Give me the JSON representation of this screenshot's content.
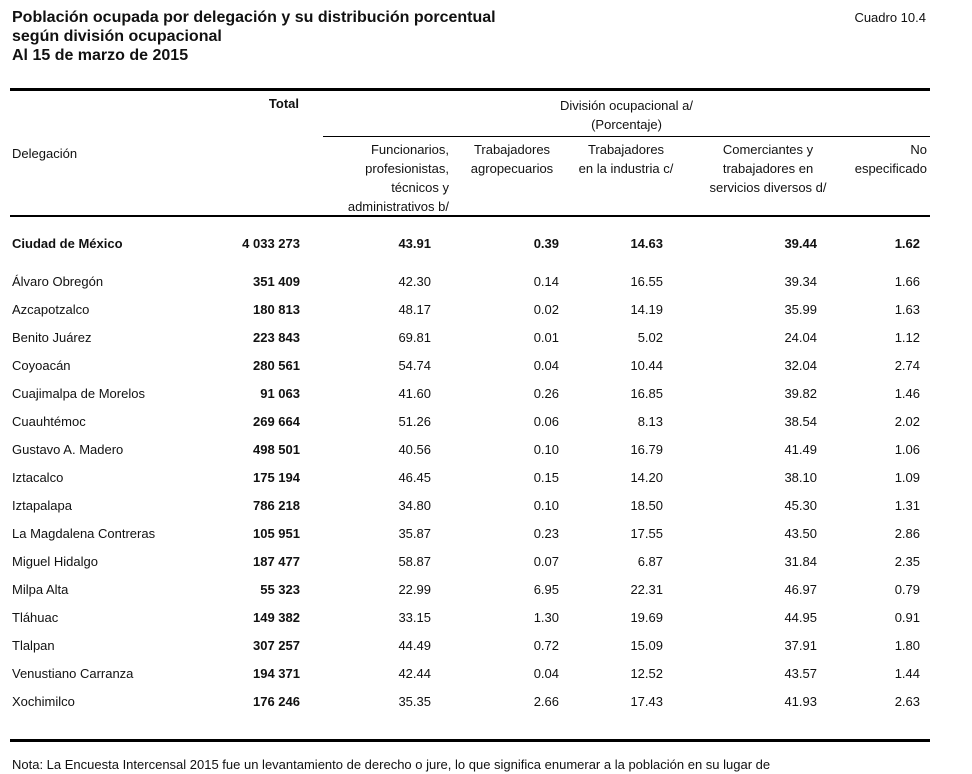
{
  "title": {
    "line1": "Población ocupada por delegación y su distribución porcentual",
    "line2": "según división ocupacional",
    "line3": "Al 15 de marzo de 2015"
  },
  "cuadro": "Cuadro 10.4",
  "header": {
    "delegacion": "Delegación",
    "total": "Total",
    "division_line1": "División ocupacional a/",
    "division_line2": "(Porcentaje)",
    "col_funcionarios": [
      "Funcionarios,",
      "profesionistas,",
      "técnicos y",
      "administrativos b/"
    ],
    "col_agropecuarios": [
      "Trabajadores",
      "agropecuarios"
    ],
    "col_industria": [
      "Trabajadores",
      "en la industria c/"
    ],
    "col_comerciantes": [
      "Comerciantes y",
      "trabajadores en",
      "servicios diversos d/"
    ],
    "col_no_especificado": [
      "No",
      "especificado"
    ]
  },
  "total_row": {
    "name": "Ciudad de México",
    "total": "4 033 273",
    "funcionarios": "43.91",
    "agropecuarios": "0.39",
    "industria": "14.63",
    "comerciantes": "39.44",
    "no_especificado": "1.62"
  },
  "rows": [
    {
      "name": "Álvaro Obregón",
      "total": "351 409",
      "funcionarios": "42.30",
      "agropecuarios": "0.14",
      "industria": "16.55",
      "comerciantes": "39.34",
      "no_especificado": "1.66"
    },
    {
      "name": "Azcapotzalco",
      "total": "180 813",
      "funcionarios": "48.17",
      "agropecuarios": "0.02",
      "industria": "14.19",
      "comerciantes": "35.99",
      "no_especificado": "1.63"
    },
    {
      "name": "Benito Juárez",
      "total": "223 843",
      "funcionarios": "69.81",
      "agropecuarios": "0.01",
      "industria": "5.02",
      "comerciantes": "24.04",
      "no_especificado": "1.12"
    },
    {
      "name": "Coyoacán",
      "total": "280 561",
      "funcionarios": "54.74",
      "agropecuarios": "0.04",
      "industria": "10.44",
      "comerciantes": "32.04",
      "no_especificado": "2.74"
    },
    {
      "name": "Cuajimalpa de Morelos",
      "total": "91 063",
      "funcionarios": "41.60",
      "agropecuarios": "0.26",
      "industria": "16.85",
      "comerciantes": "39.82",
      "no_especificado": "1.46"
    },
    {
      "name": "Cuauhtémoc",
      "total": "269 664",
      "funcionarios": "51.26",
      "agropecuarios": "0.06",
      "industria": "8.13",
      "comerciantes": "38.54",
      "no_especificado": "2.02"
    },
    {
      "name": "Gustavo A. Madero",
      "total": "498 501",
      "funcionarios": "40.56",
      "agropecuarios": "0.10",
      "industria": "16.79",
      "comerciantes": "41.49",
      "no_especificado": "1.06"
    },
    {
      "name": "Iztacalco",
      "total": "175 194",
      "funcionarios": "46.45",
      "agropecuarios": "0.15",
      "industria": "14.20",
      "comerciantes": "38.10",
      "no_especificado": "1.09"
    },
    {
      "name": "Iztapalapa",
      "total": "786 218",
      "funcionarios": "34.80",
      "agropecuarios": "0.10",
      "industria": "18.50",
      "comerciantes": "45.30",
      "no_especificado": "1.31"
    },
    {
      "name": "La Magdalena Contreras",
      "total": "105 951",
      "funcionarios": "35.87",
      "agropecuarios": "0.23",
      "industria": "17.55",
      "comerciantes": "43.50",
      "no_especificado": "2.86"
    },
    {
      "name": "Miguel Hidalgo",
      "total": "187 477",
      "funcionarios": "58.87",
      "agropecuarios": "0.07",
      "industria": "6.87",
      "comerciantes": "31.84",
      "no_especificado": "2.35"
    },
    {
      "name": "Milpa Alta",
      "total": "55 323",
      "funcionarios": "22.99",
      "agropecuarios": "6.95",
      "industria": "22.31",
      "comerciantes": "46.97",
      "no_especificado": "0.79"
    },
    {
      "name": "Tláhuac",
      "total": "149 382",
      "funcionarios": "33.15",
      "agropecuarios": "1.30",
      "industria": "19.69",
      "comerciantes": "44.95",
      "no_especificado": "0.91"
    },
    {
      "name": "Tlalpan",
      "total": "307 257",
      "funcionarios": "44.49",
      "agropecuarios": "0.72",
      "industria": "15.09",
      "comerciantes": "37.91",
      "no_especificado": "1.80"
    },
    {
      "name": "Venustiano Carranza",
      "total": "194 371",
      "funcionarios": "42.44",
      "agropecuarios": "0.04",
      "industria": "12.52",
      "comerciantes": "43.57",
      "no_especificado": "1.44"
    },
    {
      "name": "Xochimilco",
      "total": "176 246",
      "funcionarios": "35.35",
      "agropecuarios": "2.66",
      "industria": "17.43",
      "comerciantes": "41.93",
      "no_especificado": "2.63"
    }
  ],
  "note": "Nota: La Encuesta Intercensal 2015 fue un levantamiento de derecho o jure, lo que significa enumerar a la población en su lugar de"
}
